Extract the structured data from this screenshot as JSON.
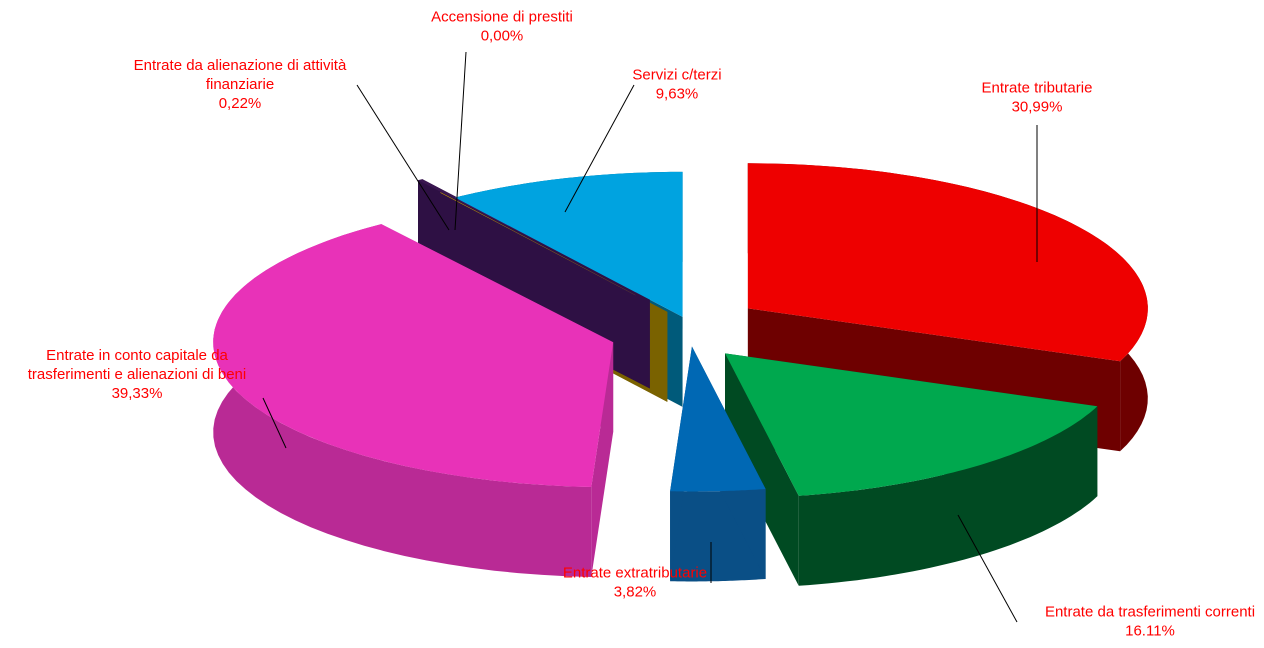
{
  "chart_data": {
    "type": "pie",
    "style": "3d-exploded",
    "label_color": "#ff0000",
    "leader_line_color": "#000000",
    "slices": [
      {
        "key": "tributarie",
        "label_lines": [
          "Entrate tributarie"
        ],
        "percent_label": "30,99%",
        "value": 30.99,
        "color": "#ee0000",
        "side_color": "#6e0000"
      },
      {
        "key": "trasferimenti_correnti",
        "label_lines": [
          "Entrate da trasferimenti correnti"
        ],
        "percent_label": "16.11%",
        "value": 16.11,
        "color": "#00a84e",
        "side_color": "#004a22"
      },
      {
        "key": "extratributarie",
        "label_lines": [
          "Entrate extratributarie"
        ],
        "percent_label": "3,82%",
        "value": 3.82,
        "color": "#0068b4",
        "side_color": "#0a4f86"
      },
      {
        "key": "conto_capitale",
        "label_lines": [
          "Entrate in conto capitale da",
          "trasferimenti e alienazioni di beni"
        ],
        "percent_label": "39,33%",
        "value": 39.33,
        "color": "#e832b8",
        "side_color": "#b92a95"
      },
      {
        "key": "alienazione_attivita",
        "label_lines": [
          "Entrate da alienazione di attività",
          "finanziarie"
        ],
        "percent_label": "0,22%",
        "value": 0.22,
        "color": "#3a1650",
        "side_color": "#2e1044"
      },
      {
        "key": "accensione_prestiti",
        "label_lines": [
          "Accensione di prestiti"
        ],
        "percent_label": "0,00%",
        "value": 0.0,
        "color": "#c8a000",
        "side_color": "#7a6200"
      },
      {
        "key": "servizi_terzi",
        "label_lines": [
          "Servizi c/terzi"
        ],
        "percent_label": "9,63%",
        "value": 9.63,
        "color": "#00a3e0",
        "side_color": "#005a7a"
      }
    ]
  }
}
